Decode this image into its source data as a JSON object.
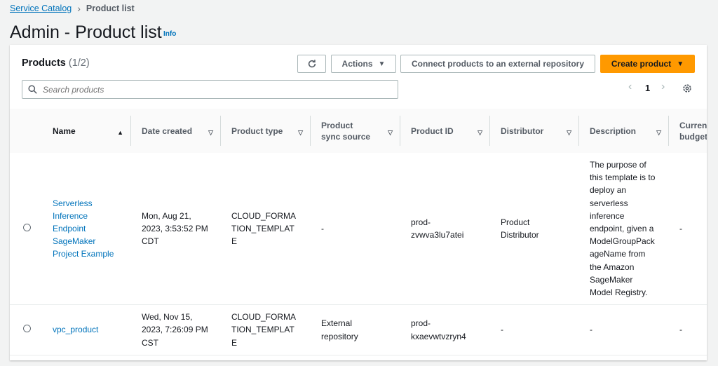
{
  "breadcrumb": {
    "root": "Service Catalog",
    "current": "Product list"
  },
  "page": {
    "title": "Admin - Product list",
    "info": "Info"
  },
  "panel": {
    "title": "Products",
    "count": "(1/2)",
    "actions_label": "Actions",
    "connect_label": "Connect products to an external repository",
    "create_label": "Create product",
    "search_placeholder": "Search products",
    "page_number": "1"
  },
  "columns": [
    "Name",
    "Date created",
    "Product type",
    "Product sync source",
    "Product ID",
    "Distributor",
    "Description",
    "Current budget"
  ],
  "rows": [
    {
      "name": "Serverless Inference Endpoint SageMaker Project Example",
      "date": "Mon, Aug 21, 2023, 3:53:52 PM CDT",
      "type": "CLOUD_FORMATION_TEMPLATE",
      "sync": "-",
      "id": "prod-zvwva3lu7atei",
      "distributor": "Product Distributor",
      "description": "The purpose of this template is to deploy an serverless inference endpoint, given a ModelGroupPackageName from the Amazon SageMaker Model Registry.",
      "budget": "-"
    },
    {
      "name": "vpc_product",
      "date": "Wed, Nov 15, 2023, 7:26:09 PM CST",
      "type": "CLOUD_FORMATION_TEMPLATE",
      "sync": "External repository",
      "id": "prod-kxaevwtvzryn4",
      "distributor": "-",
      "description": "-",
      "budget": "-"
    }
  ],
  "colors": {
    "primary": "#ff9900",
    "link": "#0073bb"
  }
}
